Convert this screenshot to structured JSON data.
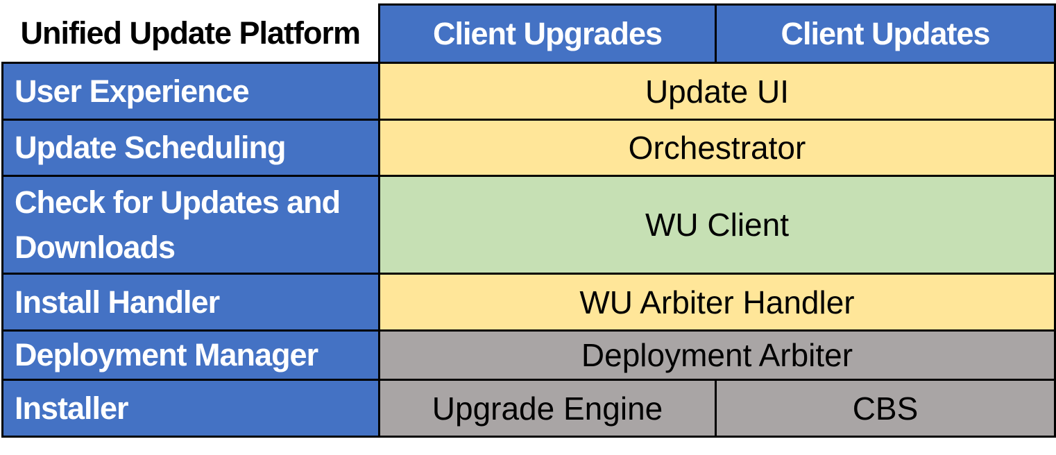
{
  "title": "Unified Update Platform",
  "header": {
    "columns": [
      {
        "label": "Client Upgrades",
        "fill": "#4472C4"
      },
      {
        "label": "Client Updates",
        "fill": "#4472C4"
      }
    ]
  },
  "rows": [
    {
      "label": "User Experience",
      "label_fill": "#4472C4",
      "cells": [
        {
          "text": "Update UI",
          "fill": "#FFE699",
          "span": 2
        }
      ]
    },
    {
      "label": "Update Scheduling",
      "label_fill": "#4472C4",
      "cells": [
        {
          "text": "Orchestrator",
          "fill": "#FFE699",
          "span": 2
        }
      ]
    },
    {
      "label": "Check for Updates and Downloads",
      "label_fill": "#4472C4",
      "cells": [
        {
          "text": "WU Client",
          "fill": "#C6E0B4",
          "span": 2
        }
      ]
    },
    {
      "label": "Install Handler",
      "label_fill": "#4472C4",
      "cells": [
        {
          "text": "WU Arbiter Handler",
          "fill": "#FFE699",
          "span": 2
        }
      ]
    },
    {
      "label": "Deployment Manager",
      "label_fill": "#4472C4",
      "cells": [
        {
          "text": "Deployment Arbiter",
          "fill": "#A9A5A5",
          "span": 2
        }
      ]
    },
    {
      "label": "Installer",
      "label_fill": "#4472C4",
      "cells": [
        {
          "text": "Upgrade Engine",
          "fill": "#A9A5A5",
          "span": 1
        },
        {
          "text": "CBS",
          "fill": "#A9A5A5",
          "span": 1
        }
      ]
    }
  ],
  "colors": {
    "border": "#000000",
    "background": "#FFFFFF",
    "accent_blue": "#4472C4",
    "yellow": "#FFE699",
    "green": "#C6E0B4",
    "gray": "#A9A5A5",
    "header_text": "#FFFFFF",
    "body_text": "#000000"
  }
}
